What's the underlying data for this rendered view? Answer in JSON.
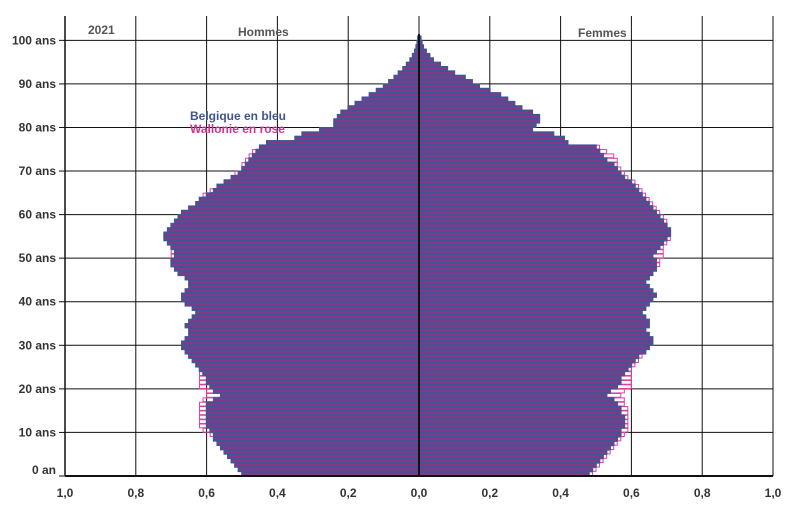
{
  "chart_data": {
    "type": "bar",
    "year_label": "2021",
    "left_header": "Hommes",
    "right_header": "Femmes",
    "x_ticks": [
      "1,0",
      "0,8",
      "0,6",
      "0,4",
      "0,2",
      "0,0",
      "0,2",
      "0,4",
      "0,6",
      "0,8",
      "1,0"
    ],
    "y_ticks": [
      {
        "age": 0,
        "label": "0 an"
      },
      {
        "age": 10,
        "label": "10 ans"
      },
      {
        "age": 20,
        "label": "20 ans"
      },
      {
        "age": 30,
        "label": "30 ans"
      },
      {
        "age": 40,
        "label": "40 ans"
      },
      {
        "age": 50,
        "label": "50 ans"
      },
      {
        "age": 60,
        "label": "60 ans"
      },
      {
        "age": 70,
        "label": "70 ans"
      },
      {
        "age": 80,
        "label": "80 ans"
      },
      {
        "age": 90,
        "label": "90 ans"
      },
      {
        "age": 100,
        "label": "100 ans"
      }
    ],
    "xlim": [
      0,
      1.0
    ],
    "ylim": [
      0,
      100
    ],
    "ages": [
      0,
      1,
      2,
      3,
      4,
      5,
      6,
      7,
      8,
      9,
      10,
      11,
      12,
      13,
      14,
      15,
      16,
      17,
      18,
      19,
      20,
      21,
      22,
      23,
      24,
      25,
      26,
      27,
      28,
      29,
      30,
      31,
      32,
      33,
      34,
      35,
      36,
      37,
      38,
      39,
      40,
      41,
      42,
      43,
      44,
      45,
      46,
      47,
      48,
      49,
      50,
      51,
      52,
      53,
      54,
      55,
      56,
      57,
      58,
      59,
      60,
      61,
      62,
      63,
      64,
      65,
      66,
      67,
      68,
      69,
      70,
      71,
      72,
      73,
      74,
      75,
      76,
      77,
      78,
      79,
      80,
      81,
      82,
      83,
      84,
      85,
      86,
      87,
      88,
      89,
      90,
      91,
      92,
      93,
      94,
      95,
      96,
      97,
      98,
      99,
      100
    ],
    "series": [
      {
        "name": "Belgique en bleu",
        "color": "#3f5693",
        "men": [
          0.5,
          0.51,
          0.52,
          0.53,
          0.54,
          0.55,
          0.56,
          0.57,
          0.58,
          0.58,
          0.59,
          0.6,
          0.6,
          0.6,
          0.6,
          0.6,
          0.6,
          0.58,
          0.56,
          0.58,
          0.59,
          0.6,
          0.6,
          0.61,
          0.62,
          0.63,
          0.64,
          0.65,
          0.66,
          0.67,
          0.67,
          0.66,
          0.65,
          0.65,
          0.66,
          0.65,
          0.64,
          0.63,
          0.64,
          0.66,
          0.67,
          0.67,
          0.66,
          0.65,
          0.65,
          0.66,
          0.68,
          0.69,
          0.7,
          0.7,
          0.69,
          0.69,
          0.7,
          0.71,
          0.72,
          0.72,
          0.71,
          0.7,
          0.69,
          0.68,
          0.67,
          0.65,
          0.63,
          0.62,
          0.6,
          0.58,
          0.57,
          0.55,
          0.53,
          0.51,
          0.5,
          0.49,
          0.48,
          0.47,
          0.46,
          0.45,
          0.43,
          0.35,
          0.33,
          0.28,
          0.24,
          0.24,
          0.23,
          0.22,
          0.2,
          0.18,
          0.16,
          0.14,
          0.12,
          0.1,
          0.085,
          0.07,
          0.058,
          0.045,
          0.035,
          0.025,
          0.018,
          0.012,
          0.008,
          0.005,
          0.003
        ],
        "women": [
          0.48,
          0.49,
          0.5,
          0.51,
          0.52,
          0.53,
          0.54,
          0.55,
          0.56,
          0.57,
          0.57,
          0.58,
          0.58,
          0.58,
          0.57,
          0.57,
          0.56,
          0.55,
          0.53,
          0.54,
          0.56,
          0.57,
          0.57,
          0.58,
          0.59,
          0.6,
          0.61,
          0.62,
          0.64,
          0.65,
          0.66,
          0.66,
          0.65,
          0.64,
          0.65,
          0.65,
          0.64,
          0.63,
          0.64,
          0.65,
          0.66,
          0.67,
          0.66,
          0.65,
          0.64,
          0.65,
          0.66,
          0.67,
          0.67,
          0.67,
          0.66,
          0.67,
          0.68,
          0.69,
          0.7,
          0.71,
          0.71,
          0.7,
          0.69,
          0.68,
          0.67,
          0.66,
          0.65,
          0.64,
          0.63,
          0.62,
          0.61,
          0.6,
          0.58,
          0.57,
          0.56,
          0.55,
          0.53,
          0.52,
          0.51,
          0.5,
          0.42,
          0.41,
          0.38,
          0.32,
          0.33,
          0.34,
          0.34,
          0.32,
          0.29,
          0.27,
          0.25,
          0.23,
          0.2,
          0.17,
          0.15,
          0.13,
          0.1,
          0.08,
          0.06,
          0.04,
          0.03,
          0.02,
          0.012,
          0.008,
          0.005
        ]
      },
      {
        "name": "Wallonie en rose",
        "color": "#e040a0",
        "men": [
          0.5,
          0.51,
          0.52,
          0.53,
          0.54,
          0.55,
          0.56,
          0.57,
          0.58,
          0.59,
          0.61,
          0.62,
          0.62,
          0.62,
          0.62,
          0.62,
          0.62,
          0.61,
          0.6,
          0.6,
          0.62,
          0.62,
          0.62,
          0.62,
          0.62,
          0.63,
          0.64,
          0.65,
          0.65,
          0.66,
          0.66,
          0.65,
          0.64,
          0.64,
          0.64,
          0.63,
          0.62,
          0.62,
          0.62,
          0.63,
          0.64,
          0.64,
          0.64,
          0.64,
          0.64,
          0.65,
          0.67,
          0.68,
          0.69,
          0.69,
          0.7,
          0.7,
          0.7,
          0.7,
          0.71,
          0.71,
          0.7,
          0.7,
          0.69,
          0.68,
          0.67,
          0.65,
          0.63,
          0.62,
          0.61,
          0.59,
          0.57,
          0.55,
          0.53,
          0.52,
          0.5,
          0.5,
          0.49,
          0.48,
          0.47,
          0.45,
          0.42,
          0.35,
          0.33,
          0.27,
          0.24,
          0.24,
          0.23,
          0.22,
          0.2,
          0.18,
          0.16,
          0.14,
          0.12,
          0.1,
          0.085,
          0.07,
          0.058,
          0.045,
          0.035,
          0.025,
          0.018,
          0.012,
          0.008,
          0.005,
          0.003
        ],
        "women": [
          0.49,
          0.5,
          0.51,
          0.52,
          0.53,
          0.54,
          0.55,
          0.56,
          0.57,
          0.58,
          0.59,
          0.59,
          0.59,
          0.59,
          0.59,
          0.59,
          0.58,
          0.58,
          0.57,
          0.58,
          0.6,
          0.6,
          0.6,
          0.6,
          0.6,
          0.61,
          0.62,
          0.63,
          0.64,
          0.65,
          0.65,
          0.65,
          0.64,
          0.64,
          0.64,
          0.64,
          0.63,
          0.63,
          0.63,
          0.64,
          0.65,
          0.65,
          0.65,
          0.64,
          0.64,
          0.65,
          0.66,
          0.67,
          0.68,
          0.68,
          0.69,
          0.69,
          0.69,
          0.7,
          0.71,
          0.71,
          0.71,
          0.7,
          0.7,
          0.69,
          0.68,
          0.67,
          0.66,
          0.65,
          0.64,
          0.63,
          0.62,
          0.61,
          0.59,
          0.58,
          0.57,
          0.56,
          0.56,
          0.55,
          0.53,
          0.51,
          0.42,
          0.41,
          0.37,
          0.32,
          0.33,
          0.33,
          0.33,
          0.31,
          0.29,
          0.27,
          0.25,
          0.23,
          0.2,
          0.17,
          0.15,
          0.13,
          0.1,
          0.08,
          0.06,
          0.04,
          0.03,
          0.02,
          0.012,
          0.008,
          0.005
        ]
      }
    ],
    "grid": true,
    "legend_position": "upper-left"
  }
}
